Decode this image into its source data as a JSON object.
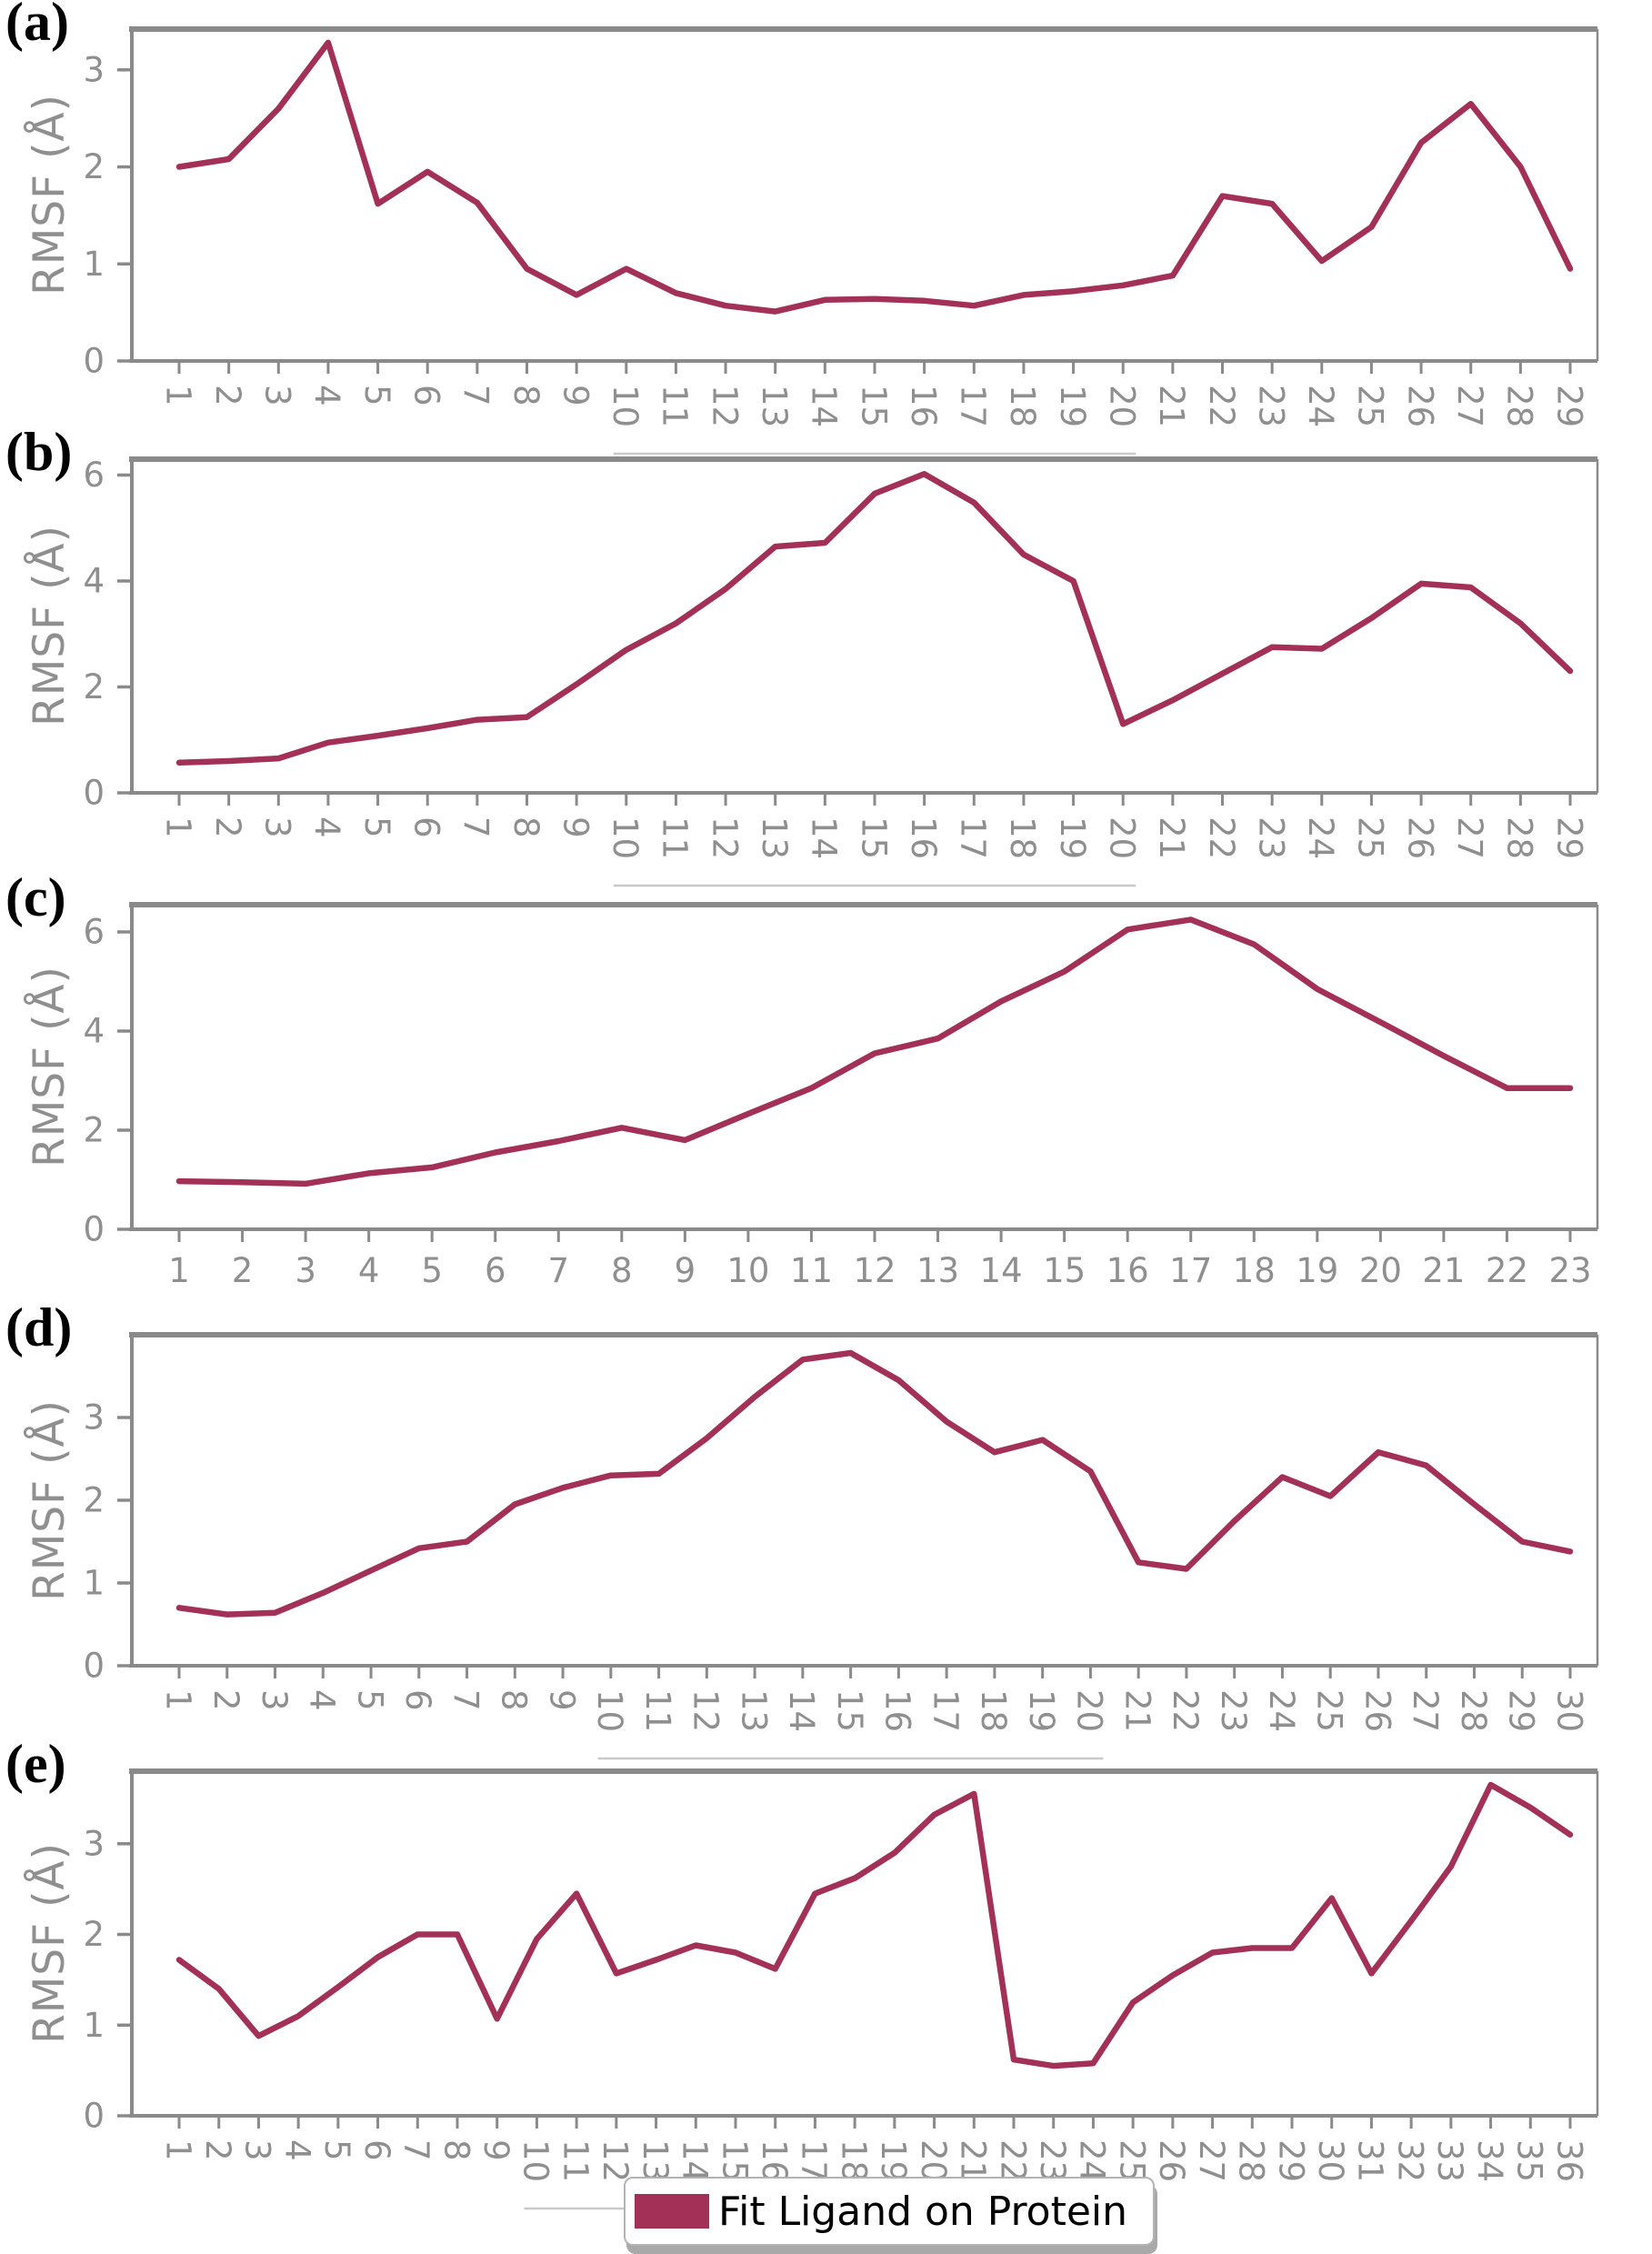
{
  "legend": {
    "label": "Fit Ligand on Protein",
    "line_color": "#a33157"
  },
  "axis_theme": {
    "spine_color": "#8a8a8a",
    "tick_label_color": "#8f8f8f",
    "underline_color": "#c9c9c9"
  },
  "chart_data": [
    {
      "panel_label": "(a)",
      "type": "line",
      "ylabel": "RMSF (Å)",
      "xlabel": "",
      "categories": [
        1,
        2,
        3,
        4,
        5,
        6,
        7,
        8,
        9,
        10,
        11,
        12,
        13,
        14,
        15,
        16,
        17,
        18,
        19,
        20,
        21,
        22,
        23,
        24,
        25,
        26,
        27,
        28,
        29
      ],
      "values": [
        2.0,
        2.08,
        2.6,
        3.28,
        1.62,
        1.95,
        1.63,
        0.95,
        0.68,
        0.95,
        0.7,
        0.57,
        0.51,
        0.63,
        0.64,
        0.62,
        0.57,
        0.68,
        0.72,
        0.78,
        0.88,
        1.7,
        1.62,
        1.03,
        1.38,
        2.25,
        2.65,
        2.0,
        0.95
      ],
      "ylim": [
        0,
        3.42
      ],
      "yticks": [
        0,
        1,
        2,
        3
      ],
      "x_tick_rotation": 90,
      "x_tick_underline_from": 10,
      "x_tick_underline_to": 20,
      "grid": false
    },
    {
      "panel_label": "(b)",
      "type": "line",
      "ylabel": "RMSF (Å)",
      "xlabel": "",
      "categories": [
        1,
        2,
        3,
        4,
        5,
        6,
        7,
        8,
        9,
        10,
        11,
        12,
        13,
        14,
        15,
        16,
        17,
        18,
        19,
        20,
        21,
        22,
        23,
        24,
        25,
        26,
        27,
        28,
        29
      ],
      "values": [
        0.57,
        0.6,
        0.65,
        0.95,
        1.08,
        1.22,
        1.38,
        1.43,
        2.05,
        2.7,
        3.2,
        3.85,
        4.65,
        4.72,
        5.65,
        6.02,
        5.48,
        4.5,
        4.0,
        1.3,
        1.75,
        2.25,
        2.75,
        2.72,
        3.3,
        3.95,
        3.88,
        3.2,
        2.3
      ],
      "ylim": [
        0,
        6.3
      ],
      "yticks": [
        0,
        2,
        4,
        6
      ],
      "x_tick_rotation": 90,
      "x_tick_underline_from": 10,
      "x_tick_underline_to": 20,
      "grid": false
    },
    {
      "panel_label": "(c)",
      "type": "line",
      "ylabel": "RMSF (Å)",
      "xlabel": "",
      "categories": [
        1,
        2,
        3,
        4,
        5,
        6,
        7,
        8,
        9,
        10,
        11,
        12,
        13,
        14,
        15,
        16,
        17,
        18,
        19,
        20,
        21,
        22,
        23
      ],
      "values": [
        0.97,
        0.95,
        0.92,
        1.13,
        1.25,
        1.55,
        1.78,
        2.05,
        1.8,
        2.33,
        2.85,
        3.55,
        3.85,
        4.6,
        5.2,
        6.05,
        6.25,
        5.75,
        4.85,
        4.18,
        3.5,
        2.85,
        2.85
      ],
      "ylim": [
        0,
        6.55
      ],
      "yticks": [
        0,
        2,
        4,
        6
      ],
      "x_tick_rotation": 0,
      "x_tick_underline_from": null,
      "x_tick_underline_to": null,
      "grid": false
    },
    {
      "panel_label": "(d)",
      "type": "line",
      "ylabel": "RMSF (Å)",
      "xlabel": "",
      "categories": [
        1,
        2,
        3,
        4,
        5,
        6,
        7,
        8,
        9,
        10,
        11,
        12,
        13,
        14,
        15,
        16,
        17,
        18,
        19,
        20,
        21,
        22,
        23,
        24,
        25,
        26,
        27,
        28,
        29,
        30
      ],
      "values": [
        0.7,
        0.62,
        0.64,
        0.88,
        1.15,
        1.42,
        1.5,
        1.95,
        2.15,
        2.3,
        2.32,
        2.75,
        3.25,
        3.7,
        3.78,
        3.45,
        2.95,
        2.58,
        2.73,
        2.35,
        1.25,
        1.17,
        1.75,
        2.28,
        2.05,
        2.58,
        2.42,
        1.95,
        1.5,
        1.38
      ],
      "ylim": [
        0,
        4.0
      ],
      "yticks": [
        0,
        1,
        2,
        3
      ],
      "x_tick_rotation": 90,
      "x_tick_underline_from": 10,
      "x_tick_underline_to": 20,
      "grid": false
    },
    {
      "panel_label": "(e)",
      "type": "line",
      "ylabel": "RMSF (Å)",
      "xlabel": "",
      "categories": [
        1,
        2,
        3,
        4,
        5,
        6,
        7,
        8,
        9,
        10,
        11,
        12,
        13,
        14,
        15,
        16,
        17,
        18,
        19,
        20,
        21,
        22,
        23,
        24,
        25,
        26,
        27,
        28,
        29,
        30,
        31,
        32,
        33,
        34,
        35,
        36
      ],
      "values": [
        1.72,
        1.4,
        0.88,
        1.1,
        1.42,
        1.75,
        2.0,
        2.0,
        1.07,
        1.95,
        2.45,
        1.57,
        1.72,
        1.88,
        1.8,
        1.62,
        2.45,
        2.62,
        2.9,
        3.32,
        3.55,
        0.62,
        0.55,
        0.58,
        1.25,
        1.55,
        1.8,
        1.85,
        1.85,
        2.4,
        1.57,
        2.15,
        2.75,
        3.65,
        3.4,
        3.1
      ],
      "ylim": [
        0,
        3.8
      ],
      "yticks": [
        0,
        1,
        2,
        3
      ],
      "x_tick_rotation": 90,
      "x_tick_underline_from": 10,
      "x_tick_underline_to": 20,
      "grid": false
    }
  ]
}
